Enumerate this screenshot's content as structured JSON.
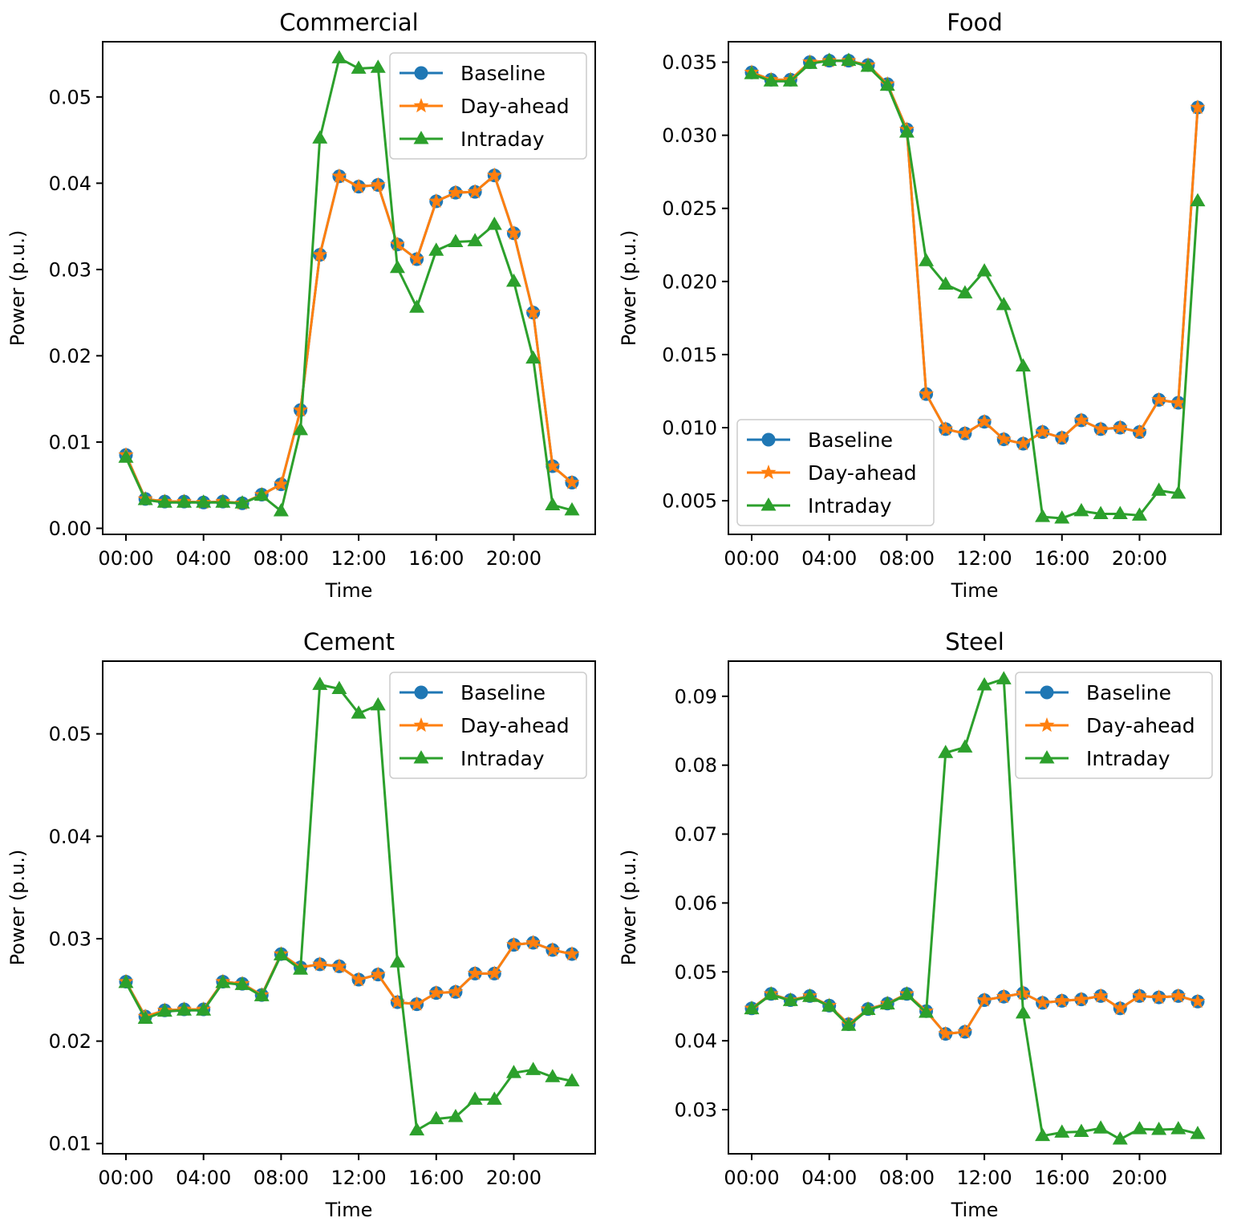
{
  "colors": {
    "baseline": "#1f77b4",
    "day_ahead": "#ff7f0e",
    "intraday": "#2ca02c"
  },
  "chart_data": [
    {
      "type": "line",
      "title": "Commercial",
      "xlabel": "Time",
      "ylabel": "Power (p.u.)",
      "x": [
        0,
        1,
        2,
        3,
        4,
        5,
        6,
        7,
        8,
        9,
        10,
        11,
        12,
        13,
        14,
        15,
        16,
        17,
        18,
        19,
        20,
        21,
        22,
        23
      ],
      "x_ticks": [
        0,
        4,
        8,
        12,
        16,
        20
      ],
      "x_tick_labels": [
        "00:00",
        "04:00",
        "08:00",
        "12:00",
        "16:00",
        "20:00"
      ],
      "xlim": [
        -1.2,
        24.2
      ],
      "ylim": [
        -0.0007,
        0.0564
      ],
      "y_ticks": [
        0.0,
        0.01,
        0.02,
        0.03,
        0.04,
        0.05
      ],
      "y_tick_labels": [
        "0.00",
        "0.01",
        "0.02",
        "0.03",
        "0.04",
        "0.05"
      ],
      "legend_position": "top-right",
      "series": [
        {
          "name": "Baseline",
          "marker": "circle",
          "color_key": "baseline",
          "values": [
            0.0085,
            0.0034,
            0.0031,
            0.0031,
            0.003,
            0.0031,
            0.0029,
            0.0039,
            0.0051,
            0.0137,
            0.0317,
            0.0408,
            0.0396,
            0.0398,
            0.0329,
            0.0312,
            0.0379,
            0.0389,
            0.039,
            0.0409,
            0.0342,
            0.025,
            0.0072,
            0.0053
          ]
        },
        {
          "name": "Day-ahead",
          "marker": "star",
          "color_key": "day_ahead",
          "values": [
            0.0085,
            0.0034,
            0.0031,
            0.0031,
            0.003,
            0.0031,
            0.0029,
            0.0039,
            0.0051,
            0.0137,
            0.0317,
            0.0408,
            0.0396,
            0.0398,
            0.0329,
            0.0312,
            0.0379,
            0.0389,
            0.039,
            0.0409,
            0.0342,
            0.025,
            0.0072,
            0.0053
          ]
        },
        {
          "name": "Intraday",
          "marker": "triangle",
          "color_key": "intraday",
          "values": [
            0.0082,
            0.0033,
            0.003,
            0.003,
            0.003,
            0.003,
            0.0029,
            0.0038,
            0.002,
            0.0114,
            0.0452,
            0.0545,
            0.0533,
            0.0534,
            0.0302,
            0.0256,
            0.0322,
            0.0332,
            0.0333,
            0.0352,
            0.0286,
            0.0197,
            0.0027,
            0.0021
          ]
        }
      ]
    },
    {
      "type": "line",
      "title": "Food",
      "xlabel": "Time",
      "ylabel": "Power (p.u.)",
      "x": [
        0,
        1,
        2,
        3,
        4,
        5,
        6,
        7,
        8,
        9,
        10,
        11,
        12,
        13,
        14,
        15,
        16,
        17,
        18,
        19,
        20,
        21,
        22,
        23
      ],
      "x_ticks": [
        0,
        4,
        8,
        12,
        16,
        20
      ],
      "x_tick_labels": [
        "00:00",
        "04:00",
        "08:00",
        "12:00",
        "16:00",
        "20:00"
      ],
      "xlim": [
        -1.2,
        24.2
      ],
      "ylim": [
        0.0027,
        0.0364
      ],
      "y_ticks": [
        0.005,
        0.01,
        0.015,
        0.02,
        0.025,
        0.03,
        0.035
      ],
      "y_tick_labels": [
        "0.005",
        "0.010",
        "0.015",
        "0.020",
        "0.025",
        "0.030",
        "0.035"
      ],
      "legend_position": "lower-left",
      "series": [
        {
          "name": "Baseline",
          "marker": "circle",
          "color_key": "baseline",
          "values": [
            0.0343,
            0.0338,
            0.0338,
            0.035,
            0.0351,
            0.0351,
            0.0348,
            0.0335,
            0.0304,
            0.0123,
            0.0099,
            0.0096,
            0.0104,
            0.0092,
            0.0089,
            0.0097,
            0.0093,
            0.0105,
            0.0099,
            0.01,
            0.0097,
            0.0119,
            0.0117,
            0.0319
          ]
        },
        {
          "name": "Day-ahead",
          "marker": "star",
          "color_key": "day_ahead",
          "values": [
            0.0343,
            0.0338,
            0.0338,
            0.035,
            0.0351,
            0.0351,
            0.0348,
            0.0335,
            0.0304,
            0.0123,
            0.0099,
            0.0096,
            0.0104,
            0.0092,
            0.0089,
            0.0097,
            0.0093,
            0.0105,
            0.0099,
            0.01,
            0.0097,
            0.0119,
            0.0117,
            0.0319
          ]
        },
        {
          "name": "Intraday",
          "marker": "triangle",
          "color_key": "intraday",
          "values": [
            0.0342,
            0.0337,
            0.0337,
            0.0349,
            0.0351,
            0.0351,
            0.0347,
            0.0334,
            0.0302,
            0.0214,
            0.0198,
            0.0192,
            0.0207,
            0.0184,
            0.0142,
            0.0039,
            0.0038,
            0.0043,
            0.0041,
            0.0041,
            0.004,
            0.0057,
            0.0055,
            0.0255
          ]
        }
      ]
    },
    {
      "type": "line",
      "title": "Cement",
      "xlabel": "Time",
      "ylabel": "Power (p.u.)",
      "x": [
        0,
        1,
        2,
        3,
        4,
        5,
        6,
        7,
        8,
        9,
        10,
        11,
        12,
        13,
        14,
        15,
        16,
        17,
        18,
        19,
        20,
        21,
        22,
        23
      ],
      "x_ticks": [
        0,
        4,
        8,
        12,
        16,
        20
      ],
      "x_tick_labels": [
        "00:00",
        "04:00",
        "08:00",
        "12:00",
        "16:00",
        "20:00"
      ],
      "xlim": [
        -1.2,
        24.2
      ],
      "ylim": [
        0.009,
        0.0571
      ],
      "y_ticks": [
        0.01,
        0.02,
        0.03,
        0.04,
        0.05
      ],
      "y_tick_labels": [
        "0.01",
        "0.02",
        "0.03",
        "0.04",
        "0.05"
      ],
      "legend_position": "top-right",
      "series": [
        {
          "name": "Baseline",
          "marker": "circle",
          "color_key": "baseline",
          "values": [
            0.0258,
            0.0224,
            0.023,
            0.0231,
            0.0231,
            0.0258,
            0.0256,
            0.0245,
            0.0285,
            0.0272,
            0.0275,
            0.0273,
            0.026,
            0.0265,
            0.0238,
            0.0236,
            0.0247,
            0.0248,
            0.0266,
            0.0266,
            0.0294,
            0.0296,
            0.0289,
            0.0285
          ]
        },
        {
          "name": "Day-ahead",
          "marker": "star",
          "color_key": "day_ahead",
          "values": [
            0.0258,
            0.0224,
            0.023,
            0.0231,
            0.0231,
            0.0258,
            0.0256,
            0.0245,
            0.0285,
            0.0272,
            0.0275,
            0.0273,
            0.026,
            0.0265,
            0.0238,
            0.0236,
            0.0247,
            0.0248,
            0.0266,
            0.0266,
            0.0294,
            0.0296,
            0.0289,
            0.0285
          ]
        },
        {
          "name": "Intraday",
          "marker": "triangle",
          "color_key": "intraday",
          "values": [
            0.0257,
            0.0222,
            0.0229,
            0.023,
            0.023,
            0.0257,
            0.0255,
            0.0244,
            0.0284,
            0.027,
            0.0548,
            0.0544,
            0.052,
            0.0528,
            0.0277,
            0.0113,
            0.0124,
            0.0126,
            0.0143,
            0.0143,
            0.0169,
            0.0172,
            0.0165,
            0.0161
          ]
        }
      ]
    },
    {
      "type": "line",
      "title": "Steel",
      "xlabel": "Time",
      "ylabel": "Power (p.u.)",
      "x": [
        0,
        1,
        2,
        3,
        4,
        5,
        6,
        7,
        8,
        9,
        10,
        11,
        12,
        13,
        14,
        15,
        16,
        17,
        18,
        19,
        20,
        21,
        22,
        23
      ],
      "x_ticks": [
        0,
        4,
        8,
        12,
        16,
        20
      ],
      "x_tick_labels": [
        "00:00",
        "04:00",
        "08:00",
        "12:00",
        "16:00",
        "20:00"
      ],
      "xlim": [
        -1.2,
        24.2
      ],
      "ylim": [
        0.0236,
        0.0951
      ],
      "y_ticks": [
        0.03,
        0.04,
        0.05,
        0.06,
        0.07,
        0.08,
        0.09
      ],
      "y_tick_labels": [
        "0.03",
        "0.04",
        "0.05",
        "0.06",
        "0.07",
        "0.08",
        "0.09"
      ],
      "legend_position": "top-right",
      "series": [
        {
          "name": "Baseline",
          "marker": "circle",
          "color_key": "baseline",
          "values": [
            0.0447,
            0.0468,
            0.0459,
            0.0465,
            0.0451,
            0.0424,
            0.0446,
            0.0454,
            0.0468,
            0.0443,
            0.041,
            0.0413,
            0.0459,
            0.0464,
            0.0469,
            0.0455,
            0.0458,
            0.046,
            0.0465,
            0.0447,
            0.0465,
            0.0463,
            0.0465,
            0.0457
          ]
        },
        {
          "name": "Day-ahead",
          "marker": "star",
          "color_key": "day_ahead",
          "values": [
            0.0447,
            0.0468,
            0.0459,
            0.0465,
            0.0451,
            0.0424,
            0.0446,
            0.0454,
            0.0468,
            0.0443,
            0.041,
            0.0413,
            0.0459,
            0.0464,
            0.0469,
            0.0455,
            0.0458,
            0.046,
            0.0465,
            0.0447,
            0.0465,
            0.0463,
            0.0465,
            0.0457
          ]
        },
        {
          "name": "Intraday",
          "marker": "triangle",
          "color_key": "intraday",
          "values": [
            0.0446,
            0.0467,
            0.0458,
            0.0464,
            0.045,
            0.0422,
            0.0445,
            0.0453,
            0.0467,
            0.0441,
            0.0818,
            0.0826,
            0.0916,
            0.0925,
            0.044,
            0.0262,
            0.0267,
            0.0268,
            0.0273,
            0.0257,
            0.0272,
            0.0271,
            0.0272,
            0.0265
          ]
        }
      ]
    }
  ]
}
